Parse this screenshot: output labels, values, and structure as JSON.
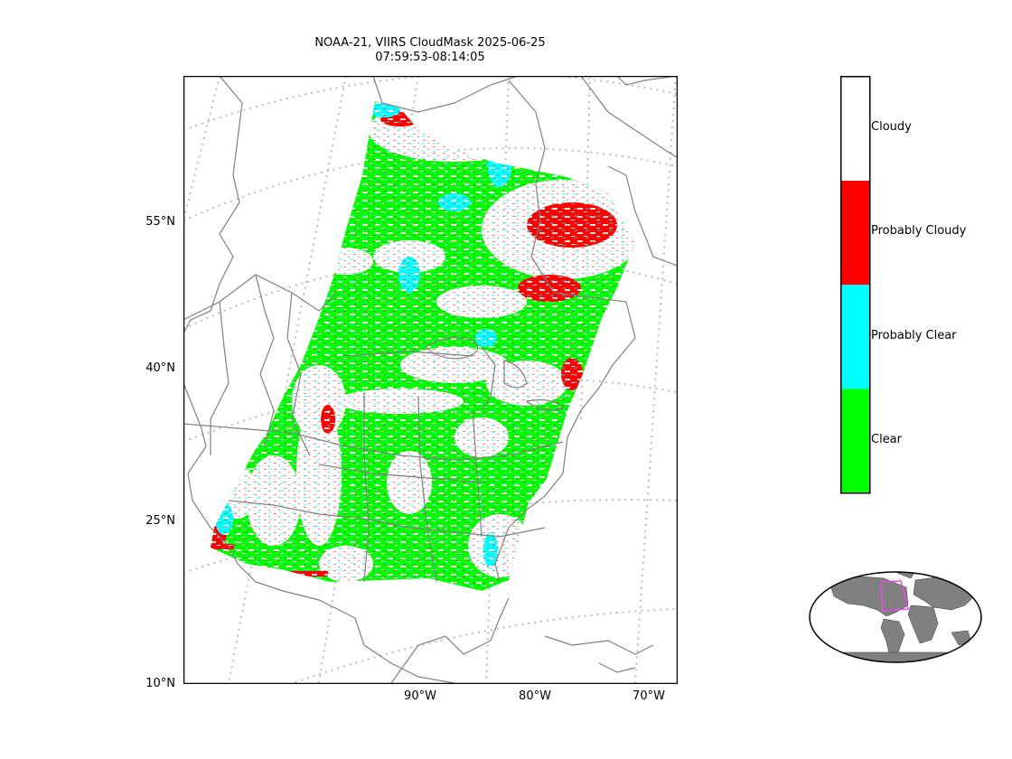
{
  "title": {
    "line1": "NOAA-21, VIIRS CloudMask 2025-06-25",
    "line2": "07:59:53-08:14:05"
  },
  "lat_labels": [
    "55°N",
    "40°N",
    "25°N",
    "10°N"
  ],
  "lon_labels": [
    "90°W",
    "80°W",
    "70°W"
  ],
  "colorbar": {
    "classes": [
      {
        "label": "Cloudy",
        "color": "#ffffff"
      },
      {
        "label": "Probably Cloudy",
        "color": "#ff0000"
      },
      {
        "label": "Probably Clear",
        "color": "#00ffff"
      },
      {
        "label": "Clear",
        "color": "#00ff00"
      }
    ]
  },
  "colors": {
    "coastline": "#808080",
    "graticule": "#bbbbbb",
    "inset_land": "#808080",
    "inset_box": "#ee44ee"
  }
}
